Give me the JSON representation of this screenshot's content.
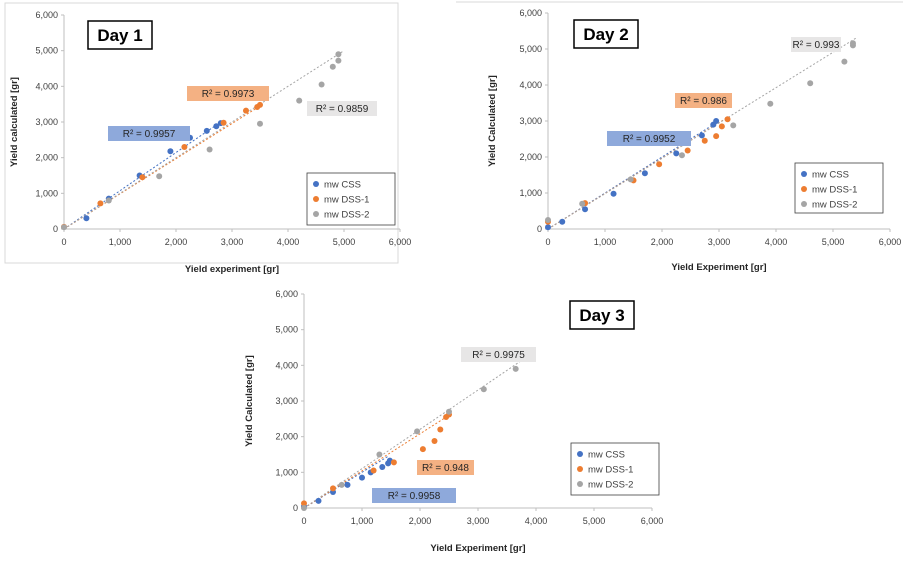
{
  "colors": {
    "css": "#4472C4",
    "dss1": "#ED7D31",
    "dss2": "#A5A5A5",
    "r2_css_bg": "#8EA9DB",
    "r2_dss1_bg": "#F4B183",
    "r2_dss2_bg": "#E7E6E6"
  },
  "chart_data": [
    {
      "type": "scatter",
      "title": "Day 1",
      "xlabel": "Yield experiment [gr]",
      "ylabel": "Yield calculated [gr]",
      "xlim": [
        0,
        6000
      ],
      "ylim": [
        0,
        6000
      ],
      "xticks": [
        "0",
        "1,000",
        "2,000",
        "3,000",
        "4,000",
        "5,000",
        "6,000"
      ],
      "yticks": [
        "0",
        "1,000",
        "2,000",
        "3,000",
        "4,000",
        "5,000",
        "6,000"
      ],
      "grid": false,
      "legend_position": "bottom-right",
      "series": [
        {
          "name": "mw CSS",
          "color": "#4472C4",
          "trend": [
            [
              0,
              0
            ],
            [
              1350,
              1450
            ],
            [
              2800,
              3000
            ]
          ],
          "r2": "R² = 0.9957",
          "points": [
            [
              400,
              300
            ],
            [
              800,
              850
            ],
            [
              1350,
              1500
            ],
            [
              1900,
              2180
            ],
            [
              2250,
              2560
            ],
            [
              2550,
              2750
            ],
            [
              2720,
              2880
            ],
            [
              2800,
              2970
            ]
          ]
        },
        {
          "name": "mw DSS-1",
          "color": "#ED7D31",
          "trend": [
            [
              0,
              0
            ],
            [
              3500,
              3450
            ]
          ],
          "r2": "R² = 0.9973",
          "points": [
            [
              0,
              60
            ],
            [
              650,
              720
            ],
            [
              1400,
              1450
            ],
            [
              2150,
              2300
            ],
            [
              2850,
              2980
            ],
            [
              3250,
              3320
            ],
            [
              3450,
              3420
            ],
            [
              3500,
              3480
            ]
          ]
        },
        {
          "name": "mw DSS-2",
          "color": "#A5A5A5",
          "trend": [
            [
              0,
              0
            ],
            [
              5000,
              5000
            ]
          ],
          "r2": "R² = 0.9859",
          "points": [
            [
              0,
              50
            ],
            [
              800,
              800
            ],
            [
              1700,
              1480
            ],
            [
              2600,
              2230
            ],
            [
              3500,
              2950
            ],
            [
              4200,
              3600
            ],
            [
              4600,
              4050
            ],
            [
              4800,
              4550
            ],
            [
              4900,
              4720
            ],
            [
              4900,
              4900
            ]
          ]
        }
      ]
    },
    {
      "type": "scatter",
      "title": "Day 2",
      "xlabel": "Yield Experiment [gr]",
      "ylabel": "Yield Calculated [gr]",
      "xlim": [
        0,
        6000
      ],
      "ylim": [
        0,
        6000
      ],
      "xticks": [
        "0",
        "1,000",
        "2,000",
        "3,000",
        "4,000",
        "5,000",
        "6,000"
      ],
      "yticks": [
        "0",
        "1,000",
        "2,000",
        "3,000",
        "4,000",
        "5,000",
        "6,000"
      ],
      "grid": false,
      "legend_position": "bottom-right",
      "series": [
        {
          "name": "mw CSS",
          "color": "#4472C4",
          "trend": [
            [
              0,
              0
            ],
            [
              2950,
              2950
            ]
          ],
          "r2": "R² = 0.9952",
          "points": [
            [
              0,
              50
            ],
            [
              250,
              200
            ],
            [
              650,
              550
            ],
            [
              1150,
              980
            ],
            [
              1700,
              1550
            ],
            [
              2250,
              2100
            ],
            [
              2700,
              2600
            ],
            [
              2900,
              2900
            ],
            [
              2950,
              3000
            ]
          ]
        },
        {
          "name": "mw DSS-1",
          "color": "#ED7D31",
          "trend": [
            [
              0,
              0
            ],
            [
              3150,
              3100
            ]
          ],
          "r2": "R² = 0.986",
          "points": [
            [
              0,
              200
            ],
            [
              650,
              720
            ],
            [
              1500,
              1350
            ],
            [
              1950,
              1800
            ],
            [
              2450,
              2180
            ],
            [
              2750,
              2450
            ],
            [
              2950,
              2580
            ],
            [
              3050,
              2850
            ],
            [
              3150,
              3050
            ]
          ]
        },
        {
          "name": "mw DSS-2",
          "color": "#A5A5A5",
          "trend": [
            [
              0,
              0
            ],
            [
              5400,
              5300
            ]
          ],
          "r2": "R² = 0.993",
          "points": [
            [
              0,
              250
            ],
            [
              600,
              700
            ],
            [
              1450,
              1380
            ],
            [
              2350,
              2050
            ],
            [
              3250,
              2880
            ],
            [
              3900,
              3480
            ],
            [
              4600,
              4050
            ],
            [
              5200,
              4650
            ],
            [
              5350,
              5100
            ],
            [
              5350,
              5160
            ]
          ]
        }
      ]
    },
    {
      "type": "scatter",
      "title": "Day 3",
      "xlabel": "Yield Experiment [gr]",
      "ylabel": "Yield Calculated [gr]",
      "xlim": [
        0,
        6000
      ],
      "ylim": [
        0,
        6000
      ],
      "xticks": [
        "0",
        "1,000",
        "2,000",
        "3,000",
        "4,000",
        "5,000",
        "6,000"
      ],
      "yticks": [
        "0",
        "1,000",
        "2,000",
        "3,000",
        "4,000",
        "5,000",
        "6,000"
      ],
      "grid": false,
      "legend_position": "bottom-right",
      "series": [
        {
          "name": "mw CSS",
          "color": "#4472C4",
          "trend": [
            [
              0,
              0
            ],
            [
              1450,
              1450
            ]
          ],
          "r2": "R² = 0.9958",
          "points": [
            [
              0,
              50
            ],
            [
              250,
              200
            ],
            [
              500,
              450
            ],
            [
              750,
              650
            ],
            [
              1000,
              850
            ],
            [
              1150,
              1000
            ],
            [
              1350,
              1150
            ],
            [
              1450,
              1250
            ],
            [
              1480,
              1330
            ]
          ]
        },
        {
          "name": "mw DSS-1",
          "color": "#ED7D31",
          "trend": [
            [
              0,
              0
            ],
            [
              2500,
              2600
            ]
          ],
          "r2": "R² = 0.948",
          "points": [
            [
              0,
              130
            ],
            [
              500,
              550
            ],
            [
              1200,
              1050
            ],
            [
              1550,
              1280
            ],
            [
              2050,
              1650
            ],
            [
              2250,
              1880
            ],
            [
              2350,
              2200
            ],
            [
              2450,
              2550
            ],
            [
              2500,
              2620
            ]
          ]
        },
        {
          "name": "mw DSS-2",
          "color": "#A5A5A5",
          "trend": [
            [
              0,
              0
            ],
            [
              3900,
              4300
            ]
          ],
          "r2": "R² = 0.9975",
          "points": [
            [
              0,
              0
            ],
            [
              650,
              650
            ],
            [
              1300,
              1500
            ],
            [
              1950,
              2150
            ],
            [
              2500,
              2700
            ],
            [
              3100,
              3330
            ],
            [
              3650,
              3900
            ],
            [
              3850,
              4250
            ],
            [
              3860,
              4320
            ]
          ]
        }
      ]
    }
  ]
}
